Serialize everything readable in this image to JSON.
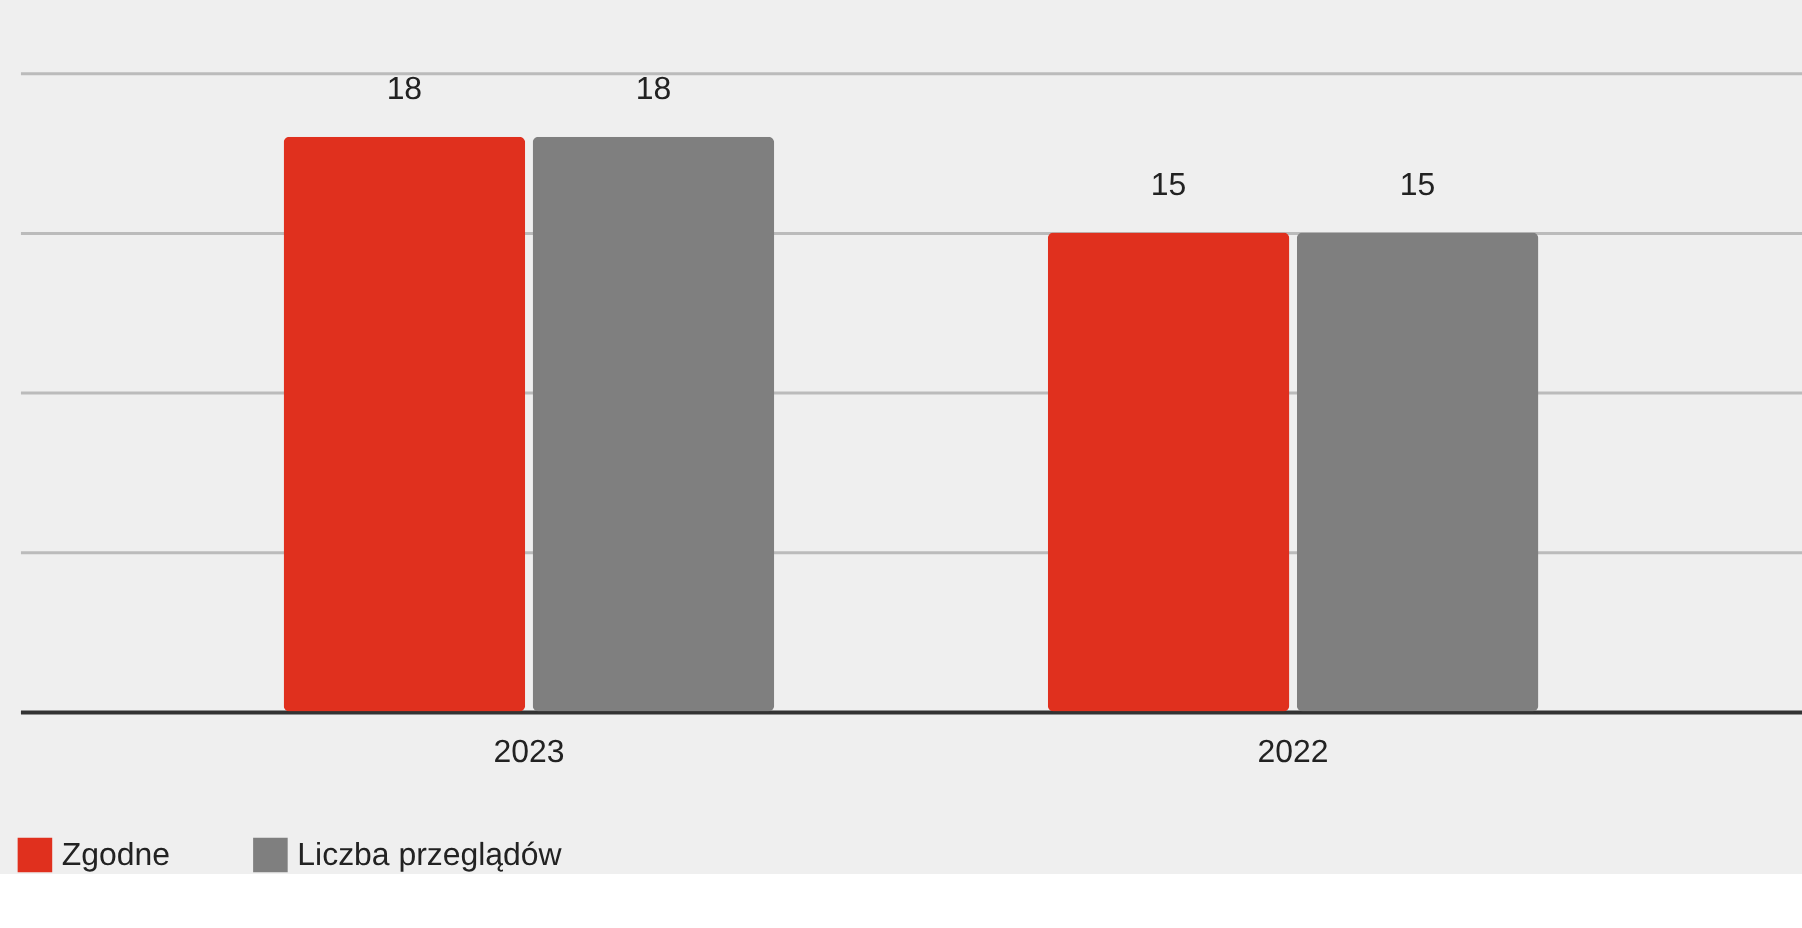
{
  "chart_data": {
    "type": "bar",
    "categories": [
      "2023",
      "2022"
    ],
    "series": [
      {
        "name": "Zgodne",
        "color": "#e0301e",
        "values": [
          18,
          15
        ]
      },
      {
        "name": "Liczba przeglądów",
        "color": "#7f7f7f",
        "values": [
          18,
          15
        ]
      }
    ],
    "ylim": [
      0,
      20
    ],
    "yticks": [
      0,
      5,
      10,
      15,
      20
    ],
    "tick_labels": "x",
    "grid": "y",
    "data_labels": true,
    "legend": "bottom left"
  }
}
